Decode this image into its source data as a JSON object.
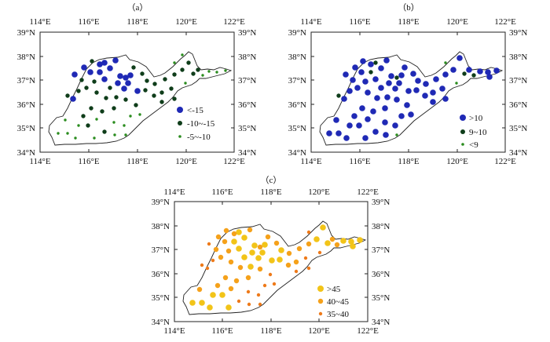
{
  "panels": [
    {
      "label": "（a）",
      "top_ticks": [
        "114°E",
        "116°E",
        "118°E",
        "120°E",
        "122°E"
      ],
      "bottom_ticks": [
        "114°E",
        "116°E",
        "118°E",
        "120°E",
        "122°E"
      ],
      "left_ticks": [
        "39°N",
        "38°N",
        "37°N",
        "36°N",
        "35°N",
        "34°N"
      ],
      "right_ticks": [
        "39°N",
        "38°N",
        "37°N",
        "36°N",
        "35°N",
        "34°N"
      ],
      "legend": [
        {
          "label": "<-15",
          "color": "#1f29b5",
          "size": "large"
        },
        {
          "label": "-10~-15",
          "color": "#0f3d1a",
          "size": "medium"
        },
        {
          "label": "-5~-10",
          "color": "#2a8c1e",
          "size": "small"
        }
      ]
    },
    {
      "label": "（b）",
      "top_ticks": [
        "114°E",
        "116°E",
        "118°E",
        "120°E",
        "122°E"
      ],
      "bottom_ticks": [
        "114°E",
        "116°E",
        "118°E",
        "120°E",
        "122°E"
      ],
      "left_ticks": [
        "39°N",
        "38°N",
        "37°N",
        "36°N",
        "35°N",
        "34°N"
      ],
      "right_ticks": [
        "39°N",
        "38°N",
        "37°N",
        "36°N",
        "35°N",
        "34°N"
      ],
      "legend": [
        {
          "label": ">10",
          "color": "#1f29b5",
          "size": "large"
        },
        {
          "label": "9~10",
          "color": "#0f3d1a",
          "size": "medium"
        },
        {
          "label": "<9",
          "color": "#2a8c1e",
          "size": "small"
        }
      ]
    },
    {
      "label": "（c）",
      "top_ticks": [
        "114°E",
        "116°E",
        "118°E",
        "120°E",
        "122°E"
      ],
      "bottom_ticks": [
        "114°E",
        "116°E",
        "118°E",
        "120°E",
        "122°E"
      ],
      "left_ticks": [
        "39°N",
        "38°N",
        "37°N",
        "36°N",
        "35°N",
        "34°N"
      ],
      "right_ticks": [
        "39°N",
        "38°N",
        "37°N",
        "36°N",
        "35°N",
        "34°N"
      ],
      "legend": [
        {
          "label": ">45",
          "color": "#f2c418",
          "size": "large"
        },
        {
          "label": "40~45",
          "color": "#f5a11a",
          "size": "medium"
        },
        {
          "label": "35~40",
          "color": "#ee7a1a",
          "size": "small"
        }
      ]
    }
  ]
}
